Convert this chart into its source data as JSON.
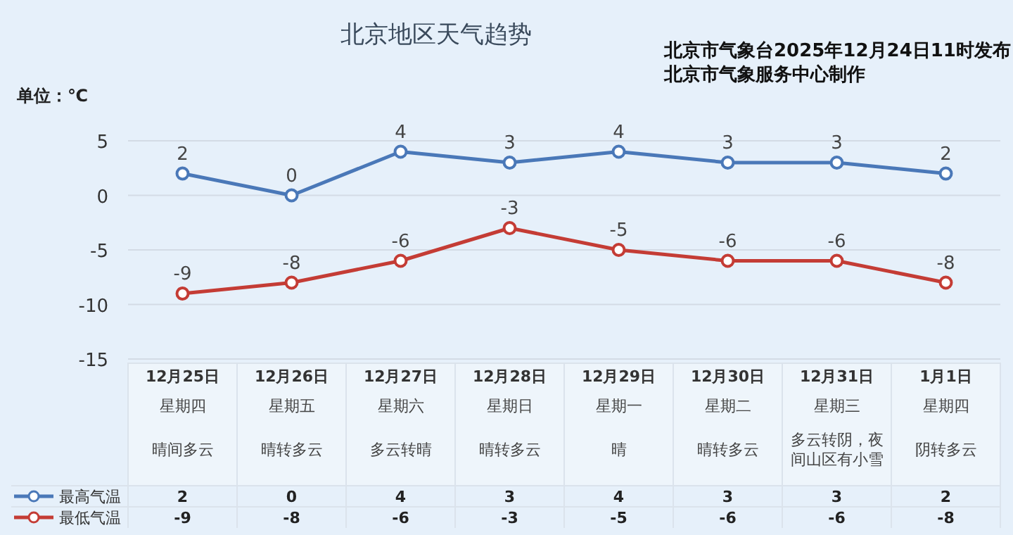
{
  "chart_data": {
    "type": "line",
    "title": "北京地区天气趋势",
    "ylabel": "单位：℃",
    "annotations": [
      "北京市气象台2025年12月24日11时发布",
      "北京市气象服务中心制作",
      "星期四",
      "星期五",
      "星期六",
      "星期日",
      "星期一",
      "星期二",
      "星期三",
      "星期四",
      "晴间多云",
      "晴转多云",
      "多云转晴",
      "晴转多云",
      "晴",
      "晴转多云",
      "多云转阴，夜间山区有小雪",
      "阴转多云"
    ],
    "categories": [
      "12月25日",
      "12月26日",
      "12月27日",
      "12月28日",
      "12月29日",
      "12月30日",
      "12月31日",
      "1月1日"
    ],
    "series": [
      {
        "name": "最高气温",
        "color": "#4a78b8",
        "values": [
          2,
          0,
          4,
          3,
          4,
          3,
          3,
          2
        ],
        "value_labels": [
          "2",
          "0",
          "4",
          "3",
          "4",
          "3",
          "3",
          "2"
        ]
      },
      {
        "name": "最低气温",
        "color": "#c43c35",
        "values": [
          -9,
          -8,
          -6,
          -3,
          -5,
          -6,
          -6,
          -8
        ],
        "value_labels": [
          "-9",
          "-8",
          "-6",
          "-3",
          "-5",
          "-6",
          "-6",
          "-8"
        ]
      }
    ],
    "ylim": [
      -15,
      5
    ],
    "yticks": [
      -15,
      -10,
      -5,
      0,
      5
    ],
    "grid": "y",
    "marker": "circle",
    "data_labels": true,
    "legend": "bottom left"
  }
}
